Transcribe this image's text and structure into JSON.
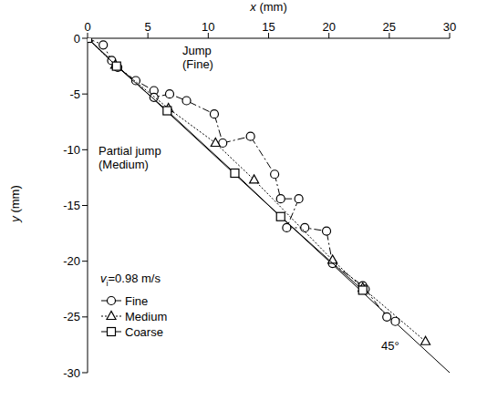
{
  "chart_data": {
    "type": "scatter",
    "x_label": "x (mm)",
    "y_label": "y (mm)",
    "xlim": [
      0,
      30
    ],
    "xticks": [
      0,
      5,
      10,
      15,
      20,
      25,
      30
    ],
    "ylim": [
      -30,
      0
    ],
    "yticks": [
      -30,
      -25,
      -20,
      -15,
      -10,
      -5,
      0
    ],
    "grid": false,
    "legend": "bottom-left",
    "velocity_label": {
      "symbol": "v",
      "subscript": "i",
      "text": "=0.98 m/s"
    },
    "annotations": {
      "jump": "Jump (Fine)",
      "partial_jump": "Partial jump (Medium)",
      "angle": "45°"
    },
    "reference_line": {
      "x": [
        0,
        30
      ],
      "values": [
        0,
        -30
      ],
      "color": "#000000"
    },
    "series": [
      {
        "name": "Fine",
        "color": "#000000",
        "marker": "circle",
        "line_style": "dashdot",
        "x": [
          0,
          1.3,
          2.0,
          2.5,
          4.0,
          5.5,
          5.5,
          6.8,
          8.2,
          10.5,
          11.2,
          13.5,
          15.5,
          16.0,
          17.5,
          16.5,
          18.0,
          19.8,
          20.3,
          22.8,
          23.0,
          24.8,
          25.5
        ],
        "values": [
          0,
          -0.6,
          -2.0,
          -2.6,
          -3.8,
          -4.7,
          -5.3,
          -5.0,
          -5.6,
          -6.8,
          -9.4,
          -8.8,
          -12.2,
          -14.4,
          -14.4,
          -17.0,
          -17.0,
          -17.3,
          -20.2,
          -22.2,
          -22.5,
          -25.0,
          -25.4
        ]
      },
      {
        "name": "Medium",
        "color": "#000000",
        "marker": "triangle",
        "line_style": "dotted",
        "x": [
          0,
          2.3,
          6.7,
          10.6,
          13.8,
          20.3,
          22.8,
          28.0
        ],
        "values": [
          0,
          -2.4,
          -6.3,
          -9.4,
          -12.7,
          -19.9,
          -22.4,
          -27.2
        ]
      },
      {
        "name": "Coarse",
        "color": "#000000",
        "marker": "square",
        "line_style": "solid",
        "x": [
          0,
          2.4,
          6.6,
          12.2,
          16.0,
          22.8
        ],
        "values": [
          0,
          -2.5,
          -6.5,
          -12.1,
          -16.0,
          -22.6
        ]
      }
    ]
  }
}
